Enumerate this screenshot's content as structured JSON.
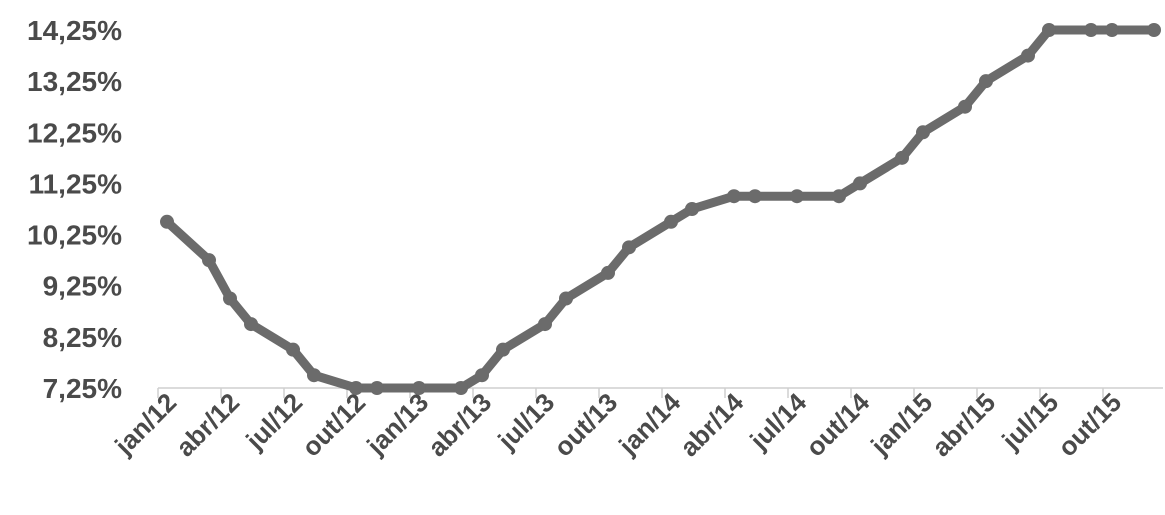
{
  "chart_data": {
    "type": "line",
    "title": "",
    "xlabel": "",
    "ylabel": "",
    "y_tick_labels": [
      "7,25%",
      "8,25%",
      "9,25%",
      "10,25%",
      "11,25%",
      "12,25%",
      "13,25%",
      "14,25%"
    ],
    "y_ticks": [
      7.25,
      8.25,
      9.25,
      10.25,
      11.25,
      12.25,
      13.25,
      14.25
    ],
    "ylim": [
      7.25,
      14.25
    ],
    "x_tick_labels": [
      "jan/12",
      "abr/12",
      "jul/12",
      "out/12",
      "jan/13",
      "abr/13",
      "jul/13",
      "out/13",
      "jan/14",
      "abr/14",
      "jul/14",
      "out/14",
      "jan/15",
      "abr/15",
      "jul/15",
      "out/15"
    ],
    "grid": false,
    "line_color": "#6b6b6b",
    "series": [
      {
        "points": [
          {
            "x": "2012-01",
            "y": 10.5
          },
          {
            "x": "2012-03",
            "y": 9.75
          },
          {
            "x": "2012-04",
            "y": 9.0
          },
          {
            "x": "2012-05",
            "y": 8.5
          },
          {
            "x": "2012-07",
            "y": 8.0
          },
          {
            "x": "2012-08",
            "y": 7.5
          },
          {
            "x": "2012-10",
            "y": 7.25
          },
          {
            "x": "2012-11",
            "y": 7.25
          },
          {
            "x": "2013-01",
            "y": 7.25
          },
          {
            "x": "2013-03",
            "y": 7.25
          },
          {
            "x": "2013-04",
            "y": 7.5
          },
          {
            "x": "2013-05",
            "y": 8.0
          },
          {
            "x": "2013-07",
            "y": 8.5
          },
          {
            "x": "2013-08",
            "y": 9.0
          },
          {
            "x": "2013-10",
            "y": 9.5
          },
          {
            "x": "2013-11",
            "y": 10.0
          },
          {
            "x": "2014-01",
            "y": 10.5
          },
          {
            "x": "2014-02",
            "y": 10.75
          },
          {
            "x": "2014-04",
            "y": 11.0
          },
          {
            "x": "2014-05",
            "y": 11.0
          },
          {
            "x": "2014-07",
            "y": 11.0
          },
          {
            "x": "2014-09",
            "y": 11.0
          },
          {
            "x": "2014-10",
            "y": 11.25
          },
          {
            "x": "2014-12",
            "y": 11.75
          },
          {
            "x": "2015-01",
            "y": 12.25
          },
          {
            "x": "2015-03",
            "y": 12.75
          },
          {
            "x": "2015-04",
            "y": 13.25
          },
          {
            "x": "2015-06",
            "y": 13.75
          },
          {
            "x": "2015-07",
            "y": 14.25
          },
          {
            "x": "2015-09",
            "y": 14.25
          },
          {
            "x": "2015-10",
            "y": 14.25
          },
          {
            "x": "2015-12",
            "y": 14.25
          }
        ]
      }
    ]
  }
}
